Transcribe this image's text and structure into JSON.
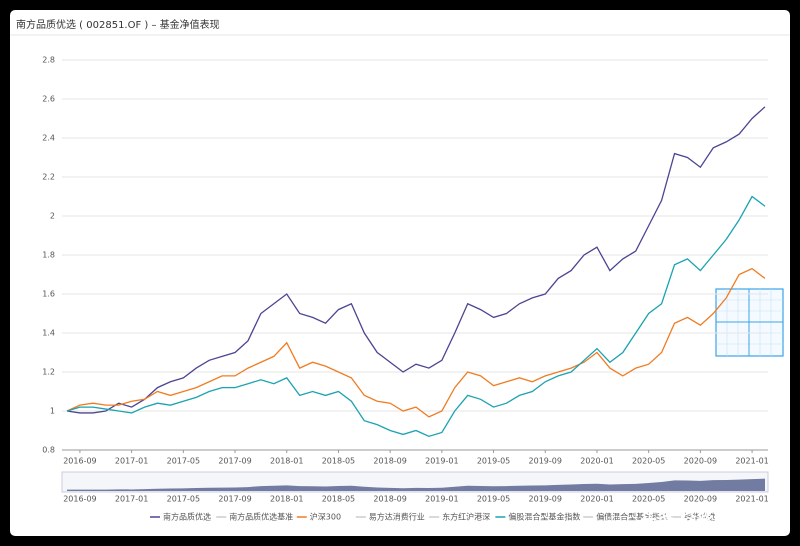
{
  "title": "南方品质优选 ( 002851.OF ) – 基金净值表现",
  "watermark": "头条 @彩虹种子",
  "chart_data": {
    "type": "line",
    "x": [
      "2016-08",
      "2016-09",
      "2016-10",
      "2016-11",
      "2016-12",
      "2017-01",
      "2017-02",
      "2017-03",
      "2017-04",
      "2017-05",
      "2017-06",
      "2017-07",
      "2017-08",
      "2017-09",
      "2017-10",
      "2017-11",
      "2017-12",
      "2018-01",
      "2018-02",
      "2018-03",
      "2018-04",
      "2018-05",
      "2018-06",
      "2018-07",
      "2018-08",
      "2018-09",
      "2018-10",
      "2018-11",
      "2018-12",
      "2019-01",
      "2019-02",
      "2019-03",
      "2019-04",
      "2019-05",
      "2019-06",
      "2019-07",
      "2019-08",
      "2019-09",
      "2019-10",
      "2019-11",
      "2019-12",
      "2020-01",
      "2020-02",
      "2020-03",
      "2020-04",
      "2020-05",
      "2020-06",
      "2020-07",
      "2020-08",
      "2020-09",
      "2020-10",
      "2020-11",
      "2020-12",
      "2021-01",
      "2021-02"
    ],
    "xticks": [
      "2016-09",
      "2017-01",
      "2017-05",
      "2017-09",
      "2018-01",
      "2018-05",
      "2018-09",
      "2019-01",
      "2019-05",
      "2019-09",
      "2020-01",
      "2020-05",
      "2020-09",
      "2021-01"
    ],
    "ylim": [
      0.8,
      2.8
    ],
    "yticks": [
      0.8,
      1,
      1.2,
      1.4,
      1.6,
      1.8,
      2,
      2.2,
      2.4,
      2.6,
      2.8
    ],
    "grid": true,
    "series": [
      {
        "name": "南方品质优选",
        "color": "#4b4592",
        "values": [
          1.0,
          0.99,
          0.99,
          1.0,
          1.04,
          1.02,
          1.06,
          1.12,
          1.15,
          1.17,
          1.22,
          1.26,
          1.28,
          1.3,
          1.36,
          1.5,
          1.55,
          1.6,
          1.5,
          1.48,
          1.45,
          1.52,
          1.55,
          1.4,
          1.3,
          1.25,
          1.2,
          1.24,
          1.22,
          1.26,
          1.4,
          1.55,
          1.52,
          1.48,
          1.5,
          1.55,
          1.58,
          1.6,
          1.68,
          1.72,
          1.8,
          1.84,
          1.72,
          1.78,
          1.82,
          1.95,
          2.08,
          2.32,
          2.3,
          2.25,
          2.35,
          2.38,
          2.42,
          2.5,
          2.56
        ]
      },
      {
        "name": "沪深300",
        "color": "#f07c22",
        "values": [
          1.0,
          1.03,
          1.04,
          1.03,
          1.03,
          1.05,
          1.06,
          1.1,
          1.08,
          1.1,
          1.12,
          1.15,
          1.18,
          1.18,
          1.22,
          1.25,
          1.28,
          1.35,
          1.22,
          1.25,
          1.23,
          1.2,
          1.17,
          1.08,
          1.05,
          1.04,
          1.0,
          1.02,
          0.97,
          1.0,
          1.12,
          1.2,
          1.18,
          1.13,
          1.15,
          1.17,
          1.15,
          1.18,
          1.2,
          1.22,
          1.25,
          1.3,
          1.22,
          1.18,
          1.22,
          1.24,
          1.3,
          1.45,
          1.48,
          1.44,
          1.5,
          1.58,
          1.7,
          1.73,
          1.68
        ]
      },
      {
        "name": "偏股混合型基金指数",
        "color": "#1aa3b0",
        "values": [
          1.0,
          1.02,
          1.02,
          1.01,
          1.0,
          0.99,
          1.02,
          1.04,
          1.03,
          1.05,
          1.07,
          1.1,
          1.12,
          1.12,
          1.14,
          1.16,
          1.14,
          1.17,
          1.08,
          1.1,
          1.08,
          1.1,
          1.05,
          0.95,
          0.93,
          0.9,
          0.88,
          0.9,
          0.87,
          0.89,
          1.0,
          1.08,
          1.06,
          1.02,
          1.04,
          1.08,
          1.1,
          1.15,
          1.18,
          1.2,
          1.26,
          1.32,
          1.25,
          1.3,
          1.4,
          1.5,
          1.55,
          1.75,
          1.78,
          1.72,
          1.8,
          1.88,
          1.98,
          2.1,
          2.05
        ]
      }
    ],
    "legend_inactive": [
      "南方品质优选基准",
      "易方达消费行业",
      "东方红沪港深",
      "偏债混合型基金指数",
      "银华优选"
    ],
    "inactive_color": "#cccccc"
  }
}
